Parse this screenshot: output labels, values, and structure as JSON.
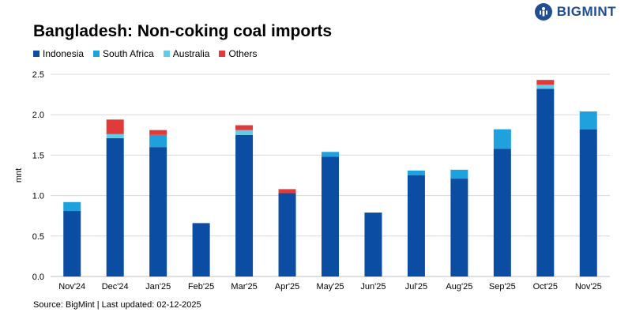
{
  "brand": {
    "name": "BIGMINT",
    "icon": "bigmint-logo-icon",
    "color": "#1f4e96"
  },
  "source": "Source: BigMint | Last updated: 02-12-2025",
  "chart_data": {
    "type": "bar",
    "stacked": true,
    "title": "Bangladesh: Non-coking coal imports",
    "xlabel": "",
    "ylabel": "mnt",
    "ylim": [
      0,
      2.5
    ],
    "yticks": [
      "0.0",
      "0.5",
      "1.0",
      "1.5",
      "2.0",
      "2.5"
    ],
    "grid": true,
    "legend_position": "top-left",
    "categories": [
      "Nov'24",
      "Dec'24",
      "Jan'25",
      "Feb'25",
      "Mar'25",
      "Apr'25",
      "May'25",
      "Jun'25",
      "Jul'25",
      "Aug'25",
      "Sep'25",
      "Oct'25",
      "Nov'25"
    ],
    "series": [
      {
        "name": "Indonesia",
        "color": "#0b4da2",
        "values": [
          0.81,
          1.71,
          1.6,
          0.66,
          1.75,
          1.03,
          1.48,
          0.79,
          1.25,
          1.21,
          1.58,
          2.32,
          1.82
        ]
      },
      {
        "name": "South Africa",
        "color": "#1ea1dc",
        "values": [
          0.11,
          0.0,
          0.15,
          0.0,
          0.0,
          0.0,
          0.06,
          0.0,
          0.06,
          0.11,
          0.24,
          0.0,
          0.22
        ]
      },
      {
        "name": "Australia",
        "color": "#63cbea",
        "values": [
          0.0,
          0.05,
          0.0,
          0.0,
          0.06,
          0.0,
          0.0,
          0.0,
          0.0,
          0.0,
          0.0,
          0.05,
          0.0
        ]
      },
      {
        "name": "Others",
        "color": "#e03a3a",
        "values": [
          0.0,
          0.18,
          0.06,
          0.0,
          0.06,
          0.05,
          0.0,
          0.0,
          0.0,
          0.0,
          0.0,
          0.06,
          0.0
        ]
      }
    ]
  }
}
